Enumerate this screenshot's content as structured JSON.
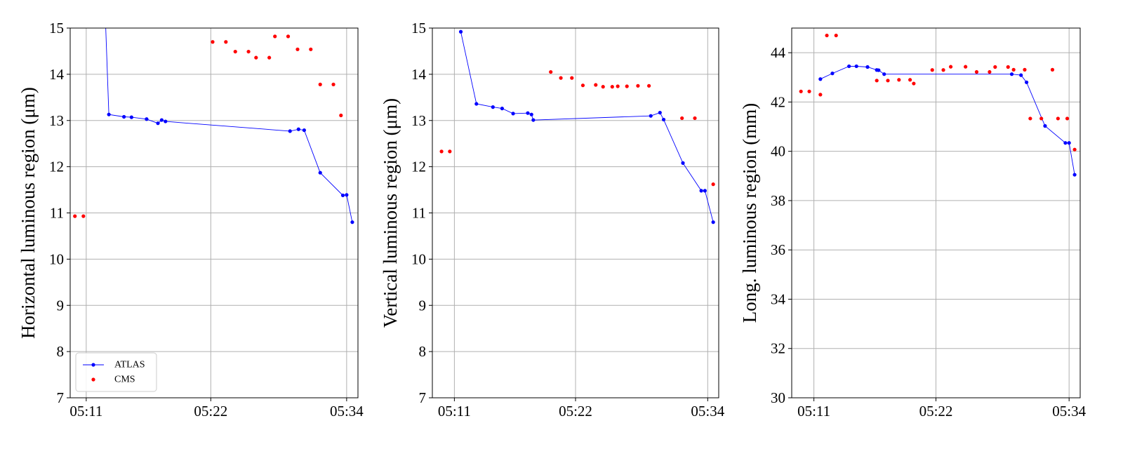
{
  "colors": {
    "atlas": "#0000ff",
    "cms": "#ff0000",
    "grid": "#b0b0b0",
    "axis": "#000000"
  },
  "chart_data": [
    {
      "type": "scatter",
      "xlabel": "",
      "ylabel": "Horizontal luminous region (μm)",
      "ylim": [
        7,
        15
      ],
      "yticks": [
        7,
        8,
        9,
        10,
        11,
        12,
        13,
        14,
        15
      ],
      "yticklabels": [
        "7",
        "8",
        "9",
        "10",
        "11",
        "12",
        "13",
        "14",
        "15"
      ],
      "xlim": [
        "05:09:35",
        "05:35:00"
      ],
      "xticks": [
        "05:11",
        "05:22",
        "05:34"
      ],
      "grid": true,
      "legend": {
        "placement": "lower-left",
        "entries": [
          "ATLAS",
          "CMS"
        ]
      },
      "series": [
        {
          "name": "ATLAS",
          "style": "line+markers",
          "points": [
            [
              "05:12:40",
              15.4
            ],
            [
              "05:13:00",
              13.13
            ],
            [
              "05:14:20",
              13.08
            ],
            [
              "05:15:00",
              13.07
            ],
            [
              "05:16:20",
              13.03
            ],
            [
              "05:17:20",
              12.94
            ],
            [
              "05:17:40",
              13.01
            ],
            [
              "05:18:00",
              12.98
            ],
            [
              "05:29:00",
              12.77
            ],
            [
              "05:29:45",
              12.81
            ],
            [
              "05:30:15",
              12.79
            ],
            [
              "05:31:40",
              11.87
            ],
            [
              "05:33:40",
              11.38
            ],
            [
              "05:34:00",
              11.39
            ],
            [
              "05:34:30",
              10.8
            ]
          ]
        },
        {
          "name": "CMS",
          "style": "markers",
          "points": [
            [
              "05:10:00",
              10.93
            ],
            [
              "05:10:45",
              10.93
            ],
            [
              "05:22:10",
              14.7
            ],
            [
              "05:23:20",
              14.7
            ],
            [
              "05:24:10",
              14.49
            ],
            [
              "05:25:20",
              14.49
            ],
            [
              "05:26:00",
              14.36
            ],
            [
              "05:27:10",
              14.36
            ],
            [
              "05:27:40",
              14.82
            ],
            [
              "05:28:50",
              14.82
            ],
            [
              "05:29:40",
              14.54
            ],
            [
              "05:30:50",
              14.54
            ],
            [
              "05:31:40",
              13.78
            ],
            [
              "05:32:50",
              13.78
            ],
            [
              "05:33:30",
              13.11
            ]
          ]
        }
      ]
    },
    {
      "type": "scatter",
      "xlabel": "",
      "ylabel": "Vertical luminous region (μm)",
      "ylim": [
        7,
        15
      ],
      "yticks": [
        7,
        8,
        9,
        10,
        11,
        12,
        13,
        14,
        15
      ],
      "yticklabels": [
        "7",
        "8",
        "9",
        "10",
        "11",
        "12",
        "13",
        "14",
        "15"
      ],
      "xlim": [
        "05:09:00",
        "05:35:00"
      ],
      "xticks": [
        "05:11",
        "05:22",
        "05:34"
      ],
      "grid": true,
      "series": [
        {
          "name": "ATLAS",
          "style": "line+markers",
          "points": [
            [
              "05:11:35",
              14.92
            ],
            [
              "05:13:00",
              13.36
            ],
            [
              "05:14:30",
              13.29
            ],
            [
              "05:15:20",
              13.26
            ],
            [
              "05:16:20",
              13.15
            ],
            [
              "05:17:40",
              13.16
            ],
            [
              "05:18:00",
              13.13
            ],
            [
              "05:18:10",
              13.01
            ],
            [
              "05:28:50",
              13.1
            ],
            [
              "05:29:40",
              13.17
            ],
            [
              "05:30:00",
              13.02
            ],
            [
              "05:31:45",
              12.08
            ],
            [
              "05:33:25",
              11.48
            ],
            [
              "05:33:45",
              11.48
            ],
            [
              "05:34:30",
              10.8
            ]
          ]
        },
        {
          "name": "CMS",
          "style": "markers",
          "points": [
            [
              "05:09:50",
              12.33
            ],
            [
              "05:10:35",
              12.33
            ],
            [
              "05:19:45",
              14.05
            ],
            [
              "05:20:40",
              13.92
            ],
            [
              "05:21:40",
              13.92
            ],
            [
              "05:22:40",
              13.76
            ],
            [
              "05:23:50",
              13.77
            ],
            [
              "05:24:30",
              13.73
            ],
            [
              "05:25:20",
              13.73
            ],
            [
              "05:25:50",
              13.74
            ],
            [
              "05:26:40",
              13.74
            ],
            [
              "05:27:40",
              13.75
            ],
            [
              "05:28:40",
              13.75
            ],
            [
              "05:31:40",
              13.05
            ],
            [
              "05:32:50",
              13.05
            ],
            [
              "05:34:30",
              11.62
            ]
          ]
        }
      ]
    },
    {
      "type": "scatter",
      "xlabel": "",
      "ylabel": "Long. luminous region (mm)",
      "ylim": [
        30,
        45
      ],
      "yticks": [
        30,
        32,
        34,
        36,
        38,
        40,
        42,
        44
      ],
      "yticklabels": [
        "30",
        "32",
        "34",
        "36",
        "38",
        "40",
        "42",
        "44"
      ],
      "xlim": [
        "05:09:00",
        "05:35:00"
      ],
      "xticks": [
        "05:11",
        "05:22",
        "05:34"
      ],
      "grid": true,
      "series": [
        {
          "name": "ATLAS",
          "style": "line+markers",
          "points": [
            [
              "05:11:35",
              42.93
            ],
            [
              "05:12:40",
              43.16
            ],
            [
              "05:14:10",
              43.45
            ],
            [
              "05:14:50",
              43.45
            ],
            [
              "05:15:50",
              43.42
            ],
            [
              "05:16:40",
              43.3
            ],
            [
              "05:16:50",
              43.29
            ],
            [
              "05:17:20",
              43.13
            ],
            [
              "05:28:50",
              43.13
            ],
            [
              "05:29:40",
              43.09
            ],
            [
              "05:30:10",
              42.8
            ],
            [
              "05:31:50",
              41.03
            ],
            [
              "05:33:40",
              40.34
            ],
            [
              "05:34:00",
              40.34
            ],
            [
              "05:34:30",
              39.05
            ]
          ]
        },
        {
          "name": "CMS",
          "style": "markers",
          "points": [
            [
              "05:09:50",
              42.43
            ],
            [
              "05:10:35",
              42.43
            ],
            [
              "05:11:35",
              42.3
            ],
            [
              "05:12:10",
              44.7
            ],
            [
              "05:13:00",
              44.7
            ],
            [
              "05:16:40",
              42.87
            ],
            [
              "05:17:40",
              42.87
            ],
            [
              "05:18:40",
              42.9
            ],
            [
              "05:19:40",
              42.9
            ],
            [
              "05:20:00",
              42.75
            ],
            [
              "05:21:40",
              43.3
            ],
            [
              "05:22:40",
              43.3
            ],
            [
              "05:23:20",
              43.43
            ],
            [
              "05:24:40",
              43.43
            ],
            [
              "05:25:40",
              43.22
            ],
            [
              "05:26:50",
              43.22
            ],
            [
              "05:27:20",
              43.42
            ],
            [
              "05:28:30",
              43.42
            ],
            [
              "05:29:00",
              43.31
            ],
            [
              "05:30:00",
              43.31
            ],
            [
              "05:30:30",
              41.33
            ],
            [
              "05:31:30",
              41.33
            ],
            [
              "05:32:30",
              43.31
            ],
            [
              "05:33:00",
              41.33
            ],
            [
              "05:33:50",
              41.33
            ],
            [
              "05:34:30",
              40.07
            ]
          ]
        }
      ]
    }
  ]
}
